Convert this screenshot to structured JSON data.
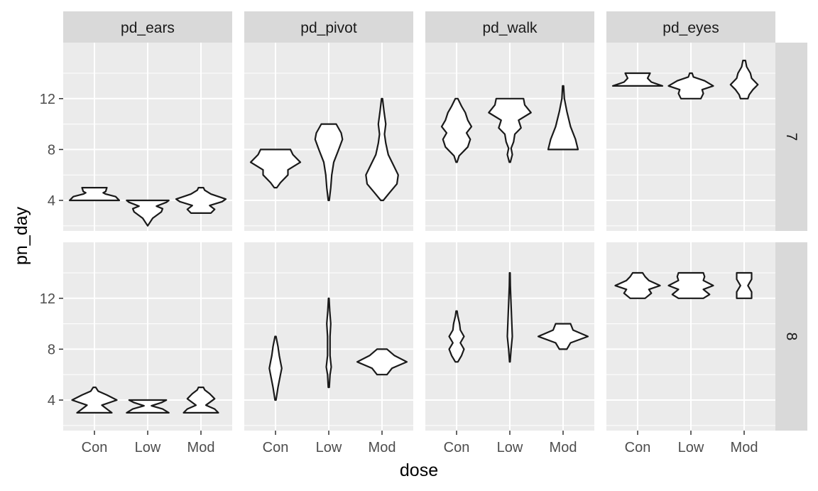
{
  "chart_data": {
    "type": "violin",
    "xlabel": "dose",
    "ylabel": "pn_day",
    "categories": [
      "Con",
      "Low",
      "Mod"
    ],
    "columns": [
      "pd_ears",
      "pd_pivot",
      "pd_walk",
      "pd_eyes"
    ],
    "rows": [
      "7",
      "8"
    ],
    "ylim": [
      1.6,
      16.4
    ],
    "yticks": [
      4,
      8,
      12
    ],
    "ytick_labels": [
      "4",
      "8",
      "12"
    ],
    "grid": true,
    "colors": {
      "panel": "#ebebeb",
      "strip": "#d9d9d9",
      "grid": "#ffffff",
      "outline": "#1a1a1a"
    },
    "violins": [
      {
        "row": "7",
        "column": "pd_ears",
        "category": "Con",
        "density": [
          [
            4,
            1.0
          ],
          [
            4.3,
            0.85
          ],
          [
            4.5,
            0.45
          ],
          [
            4.6,
            0.35
          ],
          [
            4.7,
            0.45
          ],
          [
            5,
            0.5
          ]
        ]
      },
      {
        "row": "7",
        "column": "pd_ears",
        "category": "Low",
        "density": [
          [
            2,
            0.0
          ],
          [
            2.6,
            0.2
          ],
          [
            3.1,
            0.55
          ],
          [
            3.35,
            0.6
          ],
          [
            3.55,
            0.35
          ],
          [
            3.85,
            0.75
          ],
          [
            4,
            0.85
          ]
        ]
      },
      {
        "row": "7",
        "column": "pd_ears",
        "category": "Mod",
        "density": [
          [
            3,
            0.4
          ],
          [
            3.3,
            0.55
          ],
          [
            3.6,
            0.35
          ],
          [
            3.9,
            0.85
          ],
          [
            4.1,
            1.0
          ],
          [
            4.5,
            0.4
          ],
          [
            4.8,
            0.15
          ],
          [
            5,
            0.1
          ]
        ]
      },
      {
        "row": "7",
        "column": "pd_pivot",
        "category": "Con",
        "density": [
          [
            5,
            0.05
          ],
          [
            5.4,
            0.2
          ],
          [
            6,
            0.5
          ],
          [
            6.4,
            0.5
          ],
          [
            7,
            1.0
          ],
          [
            7.6,
            0.7
          ],
          [
            8,
            0.6
          ]
        ]
      },
      {
        "row": "7",
        "column": "pd_pivot",
        "category": "Low",
        "density": [
          [
            4,
            0.02
          ],
          [
            5,
            0.08
          ],
          [
            6,
            0.12
          ],
          [
            7,
            0.2
          ],
          [
            8,
            0.4
          ],
          [
            8.8,
            0.55
          ],
          [
            9.3,
            0.5
          ],
          [
            10,
            0.3
          ]
        ]
      },
      {
        "row": "7",
        "column": "pd_pivot",
        "category": "Mod",
        "density": [
          [
            4,
            0.05
          ],
          [
            4.6,
            0.3
          ],
          [
            5.3,
            0.6
          ],
          [
            6,
            0.65
          ],
          [
            6.8,
            0.45
          ],
          [
            7.6,
            0.25
          ],
          [
            8.5,
            0.15
          ],
          [
            9.2,
            0.1
          ],
          [
            10,
            0.15
          ],
          [
            11,
            0.08
          ],
          [
            12,
            0.02
          ]
        ]
      },
      {
        "row": "7",
        "column": "pd_walk",
        "category": "Con",
        "density": [
          [
            7,
            0.02
          ],
          [
            7.5,
            0.1
          ],
          [
            8.2,
            0.45
          ],
          [
            8.8,
            0.55
          ],
          [
            9.3,
            0.4
          ],
          [
            9.8,
            0.6
          ],
          [
            10.3,
            0.45
          ],
          [
            10.9,
            0.35
          ],
          [
            11.4,
            0.2
          ],
          [
            12,
            0.05
          ]
        ]
      },
      {
        "row": "7",
        "column": "pd_walk",
        "category": "Low",
        "density": [
          [
            7,
            0.02
          ],
          [
            7.6,
            0.1
          ],
          [
            8.1,
            0.05
          ],
          [
            8.6,
            0.15
          ],
          [
            9.2,
            0.2
          ],
          [
            9.7,
            0.45
          ],
          [
            10.3,
            0.35
          ],
          [
            10.9,
            0.85
          ],
          [
            11.5,
            0.6
          ],
          [
            12,
            0.55
          ]
        ]
      },
      {
        "row": "7",
        "column": "pd_walk",
        "category": "Mod",
        "density": [
          [
            8,
            0.6
          ],
          [
            8.8,
            0.5
          ],
          [
            9.8,
            0.3
          ],
          [
            11,
            0.15
          ],
          [
            12,
            0.05
          ],
          [
            13,
            0.02
          ]
        ]
      },
      {
        "row": "7",
        "column": "pd_eyes",
        "category": "Con",
        "density": [
          [
            13,
            1.0
          ],
          [
            13.3,
            0.55
          ],
          [
            13.6,
            0.4
          ],
          [
            14,
            0.5
          ]
        ]
      },
      {
        "row": "7",
        "column": "pd_eyes",
        "category": "Low",
        "density": [
          [
            12,
            0.4
          ],
          [
            12.4,
            0.5
          ],
          [
            12.7,
            0.45
          ],
          [
            13,
            0.9
          ],
          [
            13.4,
            0.55
          ],
          [
            13.7,
            0.1
          ],
          [
            14,
            0.05
          ]
        ]
      },
      {
        "row": "7",
        "column": "pd_eyes",
        "category": "Mod",
        "density": [
          [
            12,
            0.15
          ],
          [
            12.3,
            0.2
          ],
          [
            12.7,
            0.35
          ],
          [
            13.1,
            0.55
          ],
          [
            13.6,
            0.3
          ],
          [
            14,
            0.25
          ],
          [
            14.5,
            0.1
          ],
          [
            15,
            0.05
          ]
        ]
      },
      {
        "row": "8",
        "column": "pd_ears",
        "category": "Con",
        "density": [
          [
            3,
            0.7
          ],
          [
            3.3,
            0.5
          ],
          [
            3.6,
            0.3
          ],
          [
            4,
            0.9
          ],
          [
            4.4,
            0.5
          ],
          [
            4.7,
            0.15
          ],
          [
            5,
            0.05
          ]
        ]
      },
      {
        "row": "8",
        "column": "pd_ears",
        "category": "Low",
        "density": [
          [
            3,
            0.85
          ],
          [
            3.3,
            0.6
          ],
          [
            3.55,
            0.15
          ],
          [
            3.8,
            0.55
          ],
          [
            4,
            0.75
          ]
        ]
      },
      {
        "row": "8",
        "column": "pd_ears",
        "category": "Mod",
        "density": [
          [
            3,
            0.7
          ],
          [
            3.3,
            0.55
          ],
          [
            3.6,
            0.2
          ],
          [
            4.1,
            0.55
          ],
          [
            4.5,
            0.35
          ],
          [
            4.8,
            0.15
          ],
          [
            5,
            0.1
          ]
        ]
      },
      {
        "row": "8",
        "column": "pd_pivot",
        "category": "Con",
        "density": [
          [
            4,
            0.02
          ],
          [
            5,
            0.1
          ],
          [
            6,
            0.2
          ],
          [
            6.5,
            0.25
          ],
          [
            7,
            0.2
          ],
          [
            7.5,
            0.15
          ],
          [
            8.2,
            0.1
          ],
          [
            9,
            0.02
          ]
        ]
      },
      {
        "row": "8",
        "column": "pd_pivot",
        "category": "Low",
        "density": [
          [
            5,
            0.02
          ],
          [
            6,
            0.05
          ],
          [
            6.6,
            0.1
          ],
          [
            7.5,
            0.05
          ],
          [
            9,
            0.05
          ],
          [
            10,
            0.08
          ],
          [
            11,
            0.04
          ],
          [
            12,
            0.01
          ]
        ]
      },
      {
        "row": "8",
        "column": "pd_pivot",
        "category": "Mod",
        "density": [
          [
            6,
            0.2
          ],
          [
            6.5,
            0.4
          ],
          [
            7,
            1.0
          ],
          [
            7.5,
            0.5
          ],
          [
            8,
            0.2
          ]
        ]
      },
      {
        "row": "8",
        "column": "pd_walk",
        "category": "Con",
        "density": [
          [
            7,
            0.05
          ],
          [
            7.5,
            0.2
          ],
          [
            8,
            0.3
          ],
          [
            8.5,
            0.15
          ],
          [
            9,
            0.3
          ],
          [
            9.5,
            0.15
          ],
          [
            10,
            0.12
          ],
          [
            10.6,
            0.05
          ],
          [
            11,
            0.02
          ]
        ]
      },
      {
        "row": "8",
        "column": "pd_walk",
        "category": "Low",
        "density": [
          [
            7,
            0.01
          ],
          [
            8,
            0.05
          ],
          [
            9,
            0.1
          ],
          [
            10,
            0.08
          ],
          [
            11,
            0.06
          ],
          [
            12,
            0.04
          ],
          [
            13,
            0.02
          ],
          [
            14,
            0.01
          ]
        ]
      },
      {
        "row": "8",
        "column": "pd_walk",
        "category": "Mod",
        "density": [
          [
            8,
            0.15
          ],
          [
            8.5,
            0.3
          ],
          [
            9,
            1.0
          ],
          [
            9.5,
            0.4
          ],
          [
            10,
            0.3
          ]
        ]
      },
      {
        "row": "8",
        "column": "pd_eyes",
        "category": "Con",
        "density": [
          [
            12,
            0.3
          ],
          [
            12.4,
            0.55
          ],
          [
            12.7,
            0.45
          ],
          [
            13,
            0.9
          ],
          [
            13.4,
            0.45
          ],
          [
            13.7,
            0.3
          ],
          [
            14,
            0.2
          ]
        ]
      },
      {
        "row": "8",
        "column": "pd_eyes",
        "category": "Low",
        "density": [
          [
            12,
            0.5
          ],
          [
            12.3,
            0.75
          ],
          [
            12.7,
            0.5
          ],
          [
            13,
            0.9
          ],
          [
            13.4,
            0.5
          ],
          [
            13.7,
            0.55
          ],
          [
            14,
            0.5
          ]
        ]
      },
      {
        "row": "8",
        "column": "pd_eyes",
        "category": "Mod",
        "density": [
          [
            12,
            0.3
          ],
          [
            12.5,
            0.3
          ],
          [
            13,
            0.15
          ],
          [
            13.5,
            0.3
          ],
          [
            14,
            0.3
          ]
        ]
      }
    ]
  }
}
